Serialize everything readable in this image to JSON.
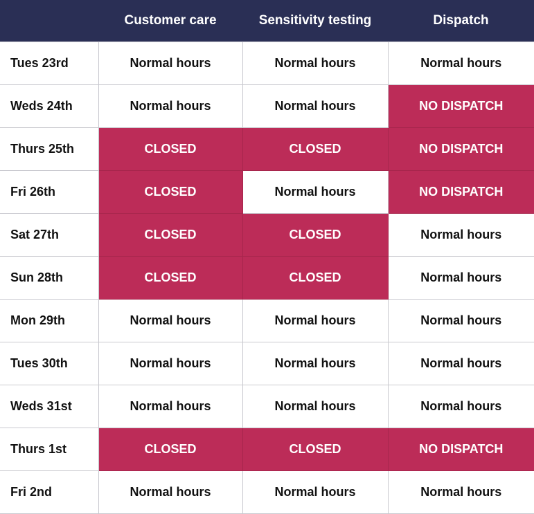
{
  "table": {
    "header": [
      "",
      "Customer care",
      "Sensitivity testing",
      "Dispatch"
    ],
    "rows": [
      [
        "Tues 23rd",
        {
          "text": "Normal hours"
        },
        {
          "text": "Normal hours"
        },
        {
          "text": "Normal hours"
        }
      ],
      [
        "Weds 24th",
        {
          "text": "Normal hours"
        },
        {
          "text": "Normal hours"
        },
        {
          "text": "NO DISPATCH",
          "fill": "#bc2c58"
        }
      ],
      [
        "Thurs 25th",
        {
          "text": "CLOSED",
          "fill": "#bc2c58"
        },
        {
          "text": "CLOSED",
          "fill": "#bc2c58"
        },
        {
          "text": "NO DISPATCH",
          "fill": "#bc2c58"
        }
      ],
      [
        "Fri 26th",
        {
          "text": "CLOSED",
          "fill": "#bc2c58"
        },
        {
          "text": "Normal hours"
        },
        {
          "text": "NO DISPATCH",
          "fill": "#bc2c58"
        }
      ],
      [
        "Sat 27th",
        {
          "text": "CLOSED",
          "fill": "#bc2c58"
        },
        {
          "text": "CLOSED",
          "fill": "#bc2c58"
        },
        {
          "text": "Normal hours"
        }
      ],
      [
        "Sun 28th",
        {
          "text": "CLOSED",
          "fill": "#bc2c58"
        },
        {
          "text": "CLOSED",
          "fill": "#bc2c58"
        },
        {
          "text": "Normal hours"
        }
      ],
      [
        "Mon 29th",
        {
          "text": "Normal hours"
        },
        {
          "text": "Normal hours"
        },
        {
          "text": "Normal hours"
        }
      ],
      [
        "Tues 30th",
        {
          "text": "Normal hours"
        },
        {
          "text": "Normal hours"
        },
        {
          "text": "Normal hours"
        }
      ],
      [
        "Weds 31st",
        {
          "text": "Normal hours"
        },
        {
          "text": "Normal hours"
        },
        {
          "text": "Normal hours"
        }
      ],
      [
        "Thurs 1st",
        {
          "text": "CLOSED",
          "fill": "#bc2c58"
        },
        {
          "text": "CLOSED",
          "fill": "#bc2c58"
        },
        {
          "text": "NO DISPATCH",
          "fill": "#bc2c58"
        }
      ],
      [
        "Fri 2nd",
        {
          "text": "Normal hours"
        },
        {
          "text": "Normal hours"
        },
        {
          "text": "Normal hours"
        }
      ]
    ]
  }
}
